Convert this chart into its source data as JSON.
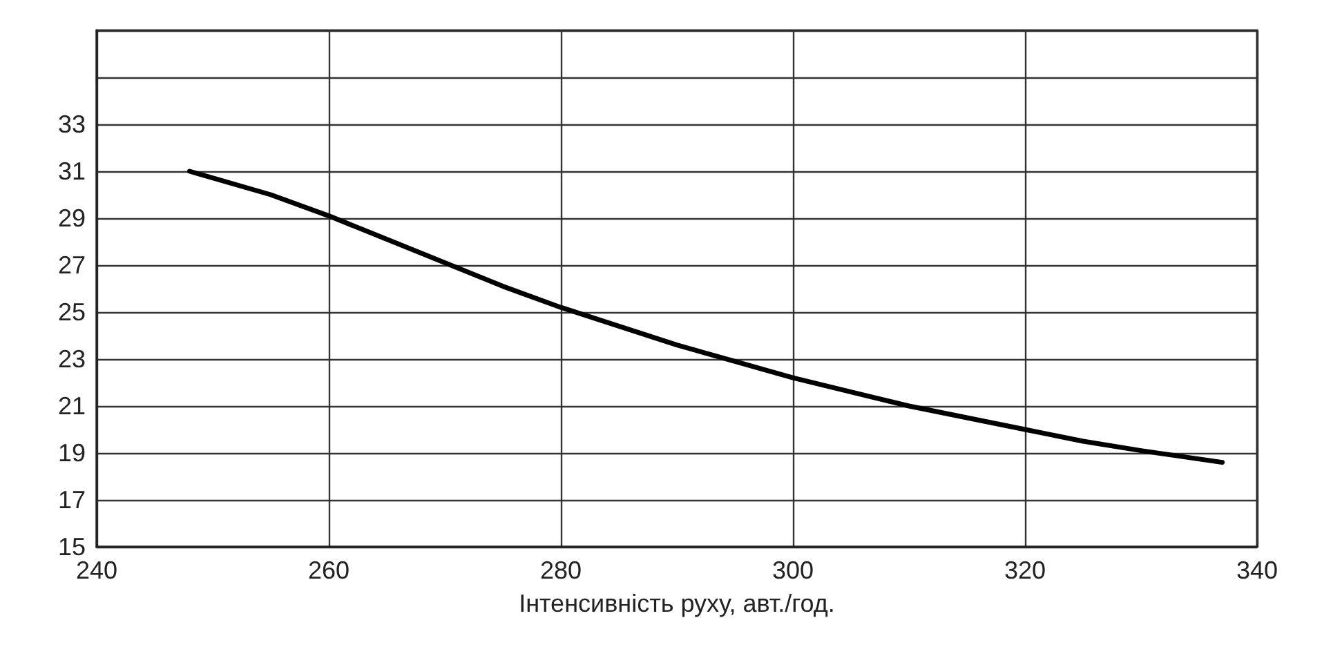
{
  "chart_data": {
    "type": "line",
    "xlabel": "Інтенсивність руху, авт./год.",
    "x": [
      248,
      255,
      260,
      265,
      270,
      275,
      280,
      285,
      290,
      295,
      300,
      305,
      310,
      315,
      320,
      325,
      330,
      337
    ],
    "series": [
      {
        "color": "#000000",
        "values": [
          31,
          30,
          29.1,
          28.1,
          27.1,
          26.1,
          25.2,
          24.4,
          23.6,
          22.9,
          22.2,
          21.6,
          21,
          20.5,
          20,
          19.5,
          19.1,
          18.6
        ]
      }
    ],
    "xlim": [
      240,
      340
    ],
    "xticks": [
      240,
      260,
      280,
      300,
      320,
      340
    ],
    "ylim": [
      15,
      37
    ],
    "yticks": [
      15,
      17,
      19,
      21,
      23,
      25,
      27,
      29,
      31,
      33,
      {
        "value": 35,
        "label": null
      },
      {
        "value": 37,
        "label": null
      }
    ],
    "grid": true,
    "marker": "none",
    "line_style": "solid"
  }
}
